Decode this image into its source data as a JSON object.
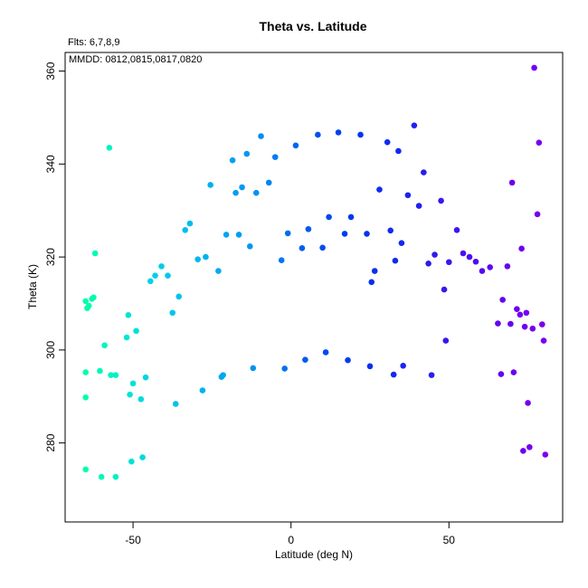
{
  "chart_data": {
    "type": "scatter",
    "title": "Theta vs. Latitude",
    "xlabel": "Latitude (deg N)",
    "ylabel": "Theta (K)",
    "xlim": [
      -71.5,
      86
    ],
    "ylim": [
      263,
      364
    ],
    "xticks": [
      -50,
      0,
      50
    ],
    "yticks": [
      280,
      300,
      320,
      340,
      360
    ],
    "grid": false,
    "annotations": [
      "Flts: 6,7,8,9",
      "MMDD: 0812,0815,0817,0820"
    ],
    "color_by_latitude": {
      "stops": [
        -65,
        -55,
        -45,
        -30,
        -10,
        5,
        20,
        40,
        55,
        70,
        80
      ],
      "colors": [
        "#00FFA8",
        "#00F0C8",
        "#00D4E4",
        "#00B8F0",
        "#0090F2",
        "#0058F0",
        "#0035F0",
        "#2020F0",
        "#4A10F0",
        "#6A00F0",
        "#7A00EE"
      ]
    },
    "points": [
      {
        "x": -65.0,
        "y": 310.5
      },
      {
        "x": -64.5,
        "y": 309.0
      },
      {
        "x": -64.0,
        "y": 309.5
      },
      {
        "x": -63.0,
        "y": 311.0
      },
      {
        "x": -62.5,
        "y": 311.3
      },
      {
        "x": -62.0,
        "y": 320.8
      },
      {
        "x": -65.0,
        "y": 295.2
      },
      {
        "x": -65.0,
        "y": 289.8
      },
      {
        "x": -65.0,
        "y": 274.3
      },
      {
        "x": -60.5,
        "y": 295.5
      },
      {
        "x": -60.0,
        "y": 272.7
      },
      {
        "x": -59.0,
        "y": 301.0
      },
      {
        "x": -57.5,
        "y": 343.5
      },
      {
        "x": -57.0,
        "y": 294.6
      },
      {
        "x": -55.5,
        "y": 294.6
      },
      {
        "x": -55.5,
        "y": 272.7
      },
      {
        "x": -51.5,
        "y": 307.5
      },
      {
        "x": -52.0,
        "y": 302.7
      },
      {
        "x": -51.0,
        "y": 290.4
      },
      {
        "x": -50.5,
        "y": 276.0
      },
      {
        "x": -50.0,
        "y": 292.8
      },
      {
        "x": -49.0,
        "y": 304.1
      },
      {
        "x": -47.5,
        "y": 289.4
      },
      {
        "x": -47.0,
        "y": 276.9
      },
      {
        "x": -46.0,
        "y": 294.1
      },
      {
        "x": -44.5,
        "y": 314.8
      },
      {
        "x": -43.0,
        "y": 316.0
      },
      {
        "x": -41.0,
        "y": 318.0
      },
      {
        "x": -39.0,
        "y": 316.0
      },
      {
        "x": -37.5,
        "y": 308.0
      },
      {
        "x": -36.5,
        "y": 288.4
      },
      {
        "x": -35.5,
        "y": 311.5
      },
      {
        "x": -33.5,
        "y": 325.8
      },
      {
        "x": -32.0,
        "y": 327.2
      },
      {
        "x": -29.5,
        "y": 319.5
      },
      {
        "x": -28.0,
        "y": 291.3
      },
      {
        "x": -27.0,
        "y": 320.0
      },
      {
        "x": -25.5,
        "y": 335.5
      },
      {
        "x": -23.0,
        "y": 317.0
      },
      {
        "x": -22.0,
        "y": 294.2
      },
      {
        "x": -21.5,
        "y": 294.6
      },
      {
        "x": -20.5,
        "y": 324.8
      },
      {
        "x": -18.5,
        "y": 340.8
      },
      {
        "x": -17.5,
        "y": 333.8
      },
      {
        "x": -16.5,
        "y": 324.8
      },
      {
        "x": -15.5,
        "y": 335.0
      },
      {
        "x": -14.0,
        "y": 342.2
      },
      {
        "x": -13.0,
        "y": 322.3
      },
      {
        "x": -12.0,
        "y": 296.1
      },
      {
        "x": -11.0,
        "y": 333.8
      },
      {
        "x": -9.5,
        "y": 346.0
      },
      {
        "x": -7.0,
        "y": 336.0
      },
      {
        "x": -5.0,
        "y": 341.5
      },
      {
        "x": -3.0,
        "y": 319.3
      },
      {
        "x": -2.0,
        "y": 296.0
      },
      {
        "x": -1.0,
        "y": 325.1
      },
      {
        "x": 1.5,
        "y": 344.0
      },
      {
        "x": 3.5,
        "y": 321.9
      },
      {
        "x": 4.5,
        "y": 297.9
      },
      {
        "x": 5.5,
        "y": 326.0
      },
      {
        "x": 8.5,
        "y": 346.3
      },
      {
        "x": 10.0,
        "y": 322.0
      },
      {
        "x": 11.0,
        "y": 299.5
      },
      {
        "x": 12.0,
        "y": 328.6
      },
      {
        "x": 15.0,
        "y": 346.8
      },
      {
        "x": 17.0,
        "y": 325.0
      },
      {
        "x": 18.0,
        "y": 297.8
      },
      {
        "x": 19.0,
        "y": 328.6
      },
      {
        "x": 22.0,
        "y": 346.3
      },
      {
        "x": 24.0,
        "y": 325.0
      },
      {
        "x": 25.0,
        "y": 296.5
      },
      {
        "x": 25.5,
        "y": 314.6
      },
      {
        "x": 26.5,
        "y": 317.0
      },
      {
        "x": 28.0,
        "y": 334.5
      },
      {
        "x": 30.5,
        "y": 344.7
      },
      {
        "x": 31.5,
        "y": 325.7
      },
      {
        "x": 32.5,
        "y": 294.7
      },
      {
        "x": 33.0,
        "y": 319.2
      },
      {
        "x": 34.0,
        "y": 342.8
      },
      {
        "x": 35.0,
        "y": 323.0
      },
      {
        "x": 35.5,
        "y": 296.6
      },
      {
        "x": 37.0,
        "y": 333.3
      },
      {
        "x": 39.0,
        "y": 348.3
      },
      {
        "x": 40.5,
        "y": 331.0
      },
      {
        "x": 42.0,
        "y": 338.2
      },
      {
        "x": 43.5,
        "y": 318.6
      },
      {
        "x": 44.5,
        "y": 294.6
      },
      {
        "x": 45.5,
        "y": 320.5
      },
      {
        "x": 47.5,
        "y": 332.1
      },
      {
        "x": 48.5,
        "y": 313.0
      },
      {
        "x": 49.0,
        "y": 302.0
      },
      {
        "x": 50.0,
        "y": 318.9
      },
      {
        "x": 52.5,
        "y": 325.8
      },
      {
        "x": 54.5,
        "y": 320.8
      },
      {
        "x": 56.5,
        "y": 320.0
      },
      {
        "x": 58.5,
        "y": 319.0
      },
      {
        "x": 60.5,
        "y": 317.0
      },
      {
        "x": 63.0,
        "y": 317.8
      },
      {
        "x": 65.5,
        "y": 305.7
      },
      {
        "x": 66.5,
        "y": 294.8
      },
      {
        "x": 67.0,
        "y": 310.8
      },
      {
        "x": 68.5,
        "y": 318.0
      },
      {
        "x": 69.5,
        "y": 305.6
      },
      {
        "x": 70.0,
        "y": 336.0
      },
      {
        "x": 70.5,
        "y": 295.2
      },
      {
        "x": 71.5,
        "y": 308.8
      },
      {
        "x": 72.5,
        "y": 307.6
      },
      {
        "x": 73.0,
        "y": 321.8
      },
      {
        "x": 73.5,
        "y": 278.3
      },
      {
        "x": 74.0,
        "y": 305.0
      },
      {
        "x": 74.5,
        "y": 308.0
      },
      {
        "x": 75.0,
        "y": 288.6
      },
      {
        "x": 75.5,
        "y": 279.1
      },
      {
        "x": 76.5,
        "y": 304.6
      },
      {
        "x": 77.0,
        "y": 360.7
      },
      {
        "x": 78.0,
        "y": 329.2
      },
      {
        "x": 78.5,
        "y": 344.6
      },
      {
        "x": 79.5,
        "y": 305.5
      },
      {
        "x": 80.0,
        "y": 302.0
      },
      {
        "x": 80.5,
        "y": 277.5
      }
    ]
  }
}
